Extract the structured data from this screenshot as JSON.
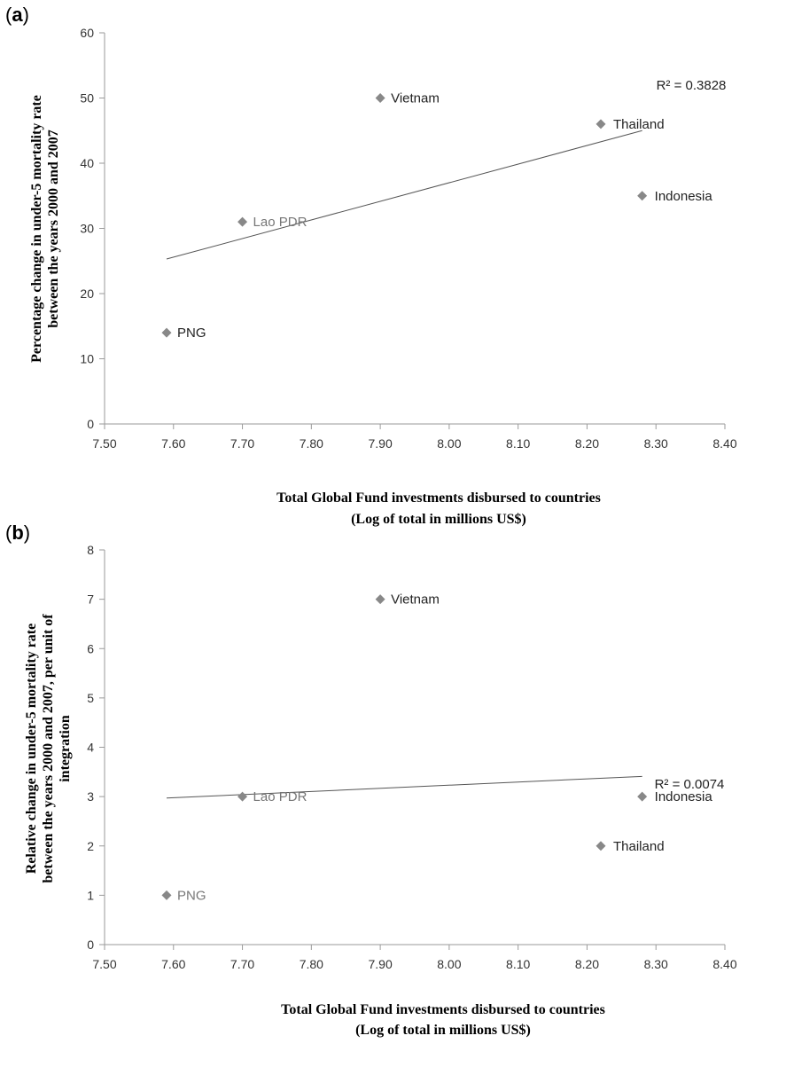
{
  "chart_data": [
    {
      "type": "scatter",
      "panel": "(a)",
      "panel_letter": "a",
      "xlabel_lines": [
        "Total Global Fund investments disbursed to countries",
        "(Log of total in millions US$)"
      ],
      "ylabel_lines": [
        "Percentage change in under-5 mortality rate",
        "between the years 2000 and 2007"
      ],
      "xlim": [
        7.5,
        8.4
      ],
      "ylim": [
        0,
        60
      ],
      "xticks": [
        "7.50",
        "7.60",
        "7.70",
        "7.80",
        "7.90",
        "8.00",
        "8.10",
        "8.20",
        "8.30",
        "8.40"
      ],
      "yticks": [
        "0",
        "10",
        "20",
        "30",
        "40",
        "50",
        "60"
      ],
      "grid": false,
      "points": [
        {
          "label": "PNG",
          "x": 7.59,
          "y": 14
        },
        {
          "label": "Lao PDR",
          "x": 7.7,
          "y": 31
        },
        {
          "label": "Vietnam",
          "x": 7.9,
          "y": 50
        },
        {
          "label": "Thailand",
          "x": 8.22,
          "y": 46
        },
        {
          "label": "Indonesia",
          "x": 8.28,
          "y": 35
        }
      ],
      "trendline": {
        "x": [
          7.59,
          8.28
        ],
        "y": [
          25.3,
          45.0
        ]
      },
      "r2_text": "R² = 0.3828"
    },
    {
      "type": "scatter",
      "panel": "(b)",
      "panel_letter": "b",
      "xlabel_lines": [
        "Total Global Fund investments disbursed to countries",
        "(Log of total in millions US$)"
      ],
      "ylabel_lines": [
        "Relative change in under-5 mortality rate",
        "between the years 2000 and 2007, per unit of",
        "integration"
      ],
      "xlim": [
        7.5,
        8.4
      ],
      "ylim": [
        0,
        8
      ],
      "xticks": [
        "7.50",
        "7.60",
        "7.70",
        "7.80",
        "7.90",
        "8.00",
        "8.10",
        "8.20",
        "8.30",
        "8.40"
      ],
      "yticks": [
        "0",
        "1",
        "2",
        "3",
        "4",
        "5",
        "6",
        "7",
        "8"
      ],
      "grid": false,
      "points": [
        {
          "label": "PNG",
          "x": 7.59,
          "y": 1
        },
        {
          "label": "Lao PDR",
          "x": 7.7,
          "y": 3
        },
        {
          "label": "Vietnam",
          "x": 7.9,
          "y": 7
        },
        {
          "label": "Thailand",
          "x": 8.22,
          "y": 2
        },
        {
          "label": "Indonesia",
          "x": 8.28,
          "y": 3
        }
      ],
      "trendline": {
        "x": [
          7.59,
          8.28
        ],
        "y": [
          2.97,
          3.41
        ]
      },
      "r2_text": "R² = 0.0074"
    }
  ]
}
